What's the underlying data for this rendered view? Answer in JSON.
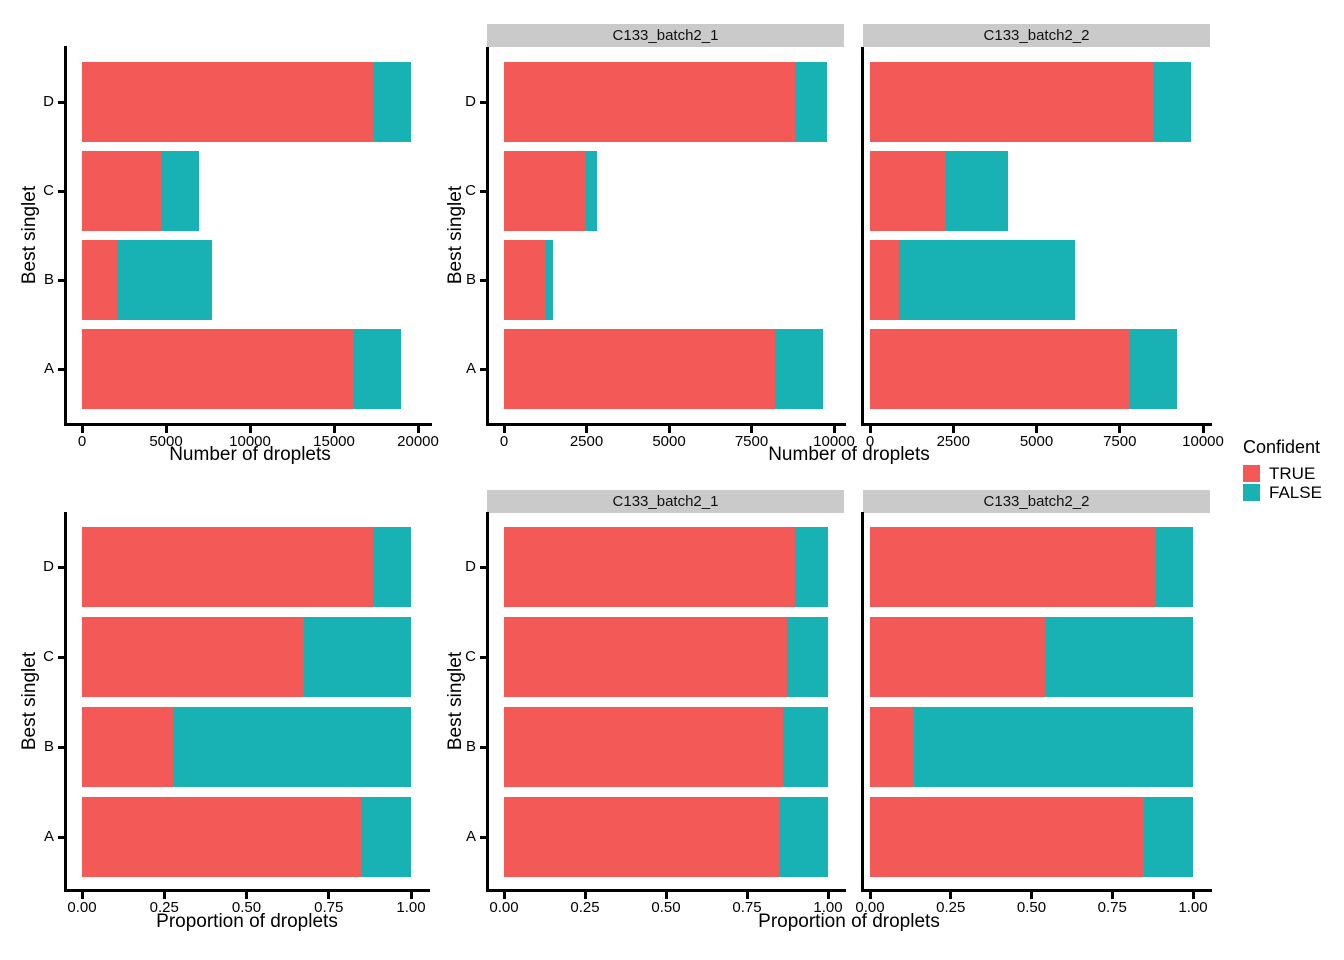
{
  "figure": {
    "background": "#ffffff",
    "y_axis_title": "Best singlet",
    "colors": {
      "TRUE": "#F35A57",
      "FALSE": "#18B1B4",
      "strip_bg": "#CACACA",
      "axis": "#000000",
      "text": "#000000"
    },
    "legend": {
      "title": "Confident",
      "items": [
        {
          "label": "TRUE",
          "color": "#F35A57"
        },
        {
          "label": "FALSE",
          "color": "#18B1B4"
        }
      ]
    }
  },
  "chart_data": [
    {
      "id": "counts-combined",
      "type": "bar",
      "orientation": "horizontal",
      "stacked": true,
      "facet": null,
      "xlabel": "Number of droplets",
      "ylabel": "Best singlet",
      "xlim": [
        0,
        20000
      ],
      "xticks": [
        0,
        5000,
        10000,
        15000,
        20000
      ],
      "xtick_labels": [
        "0",
        "5000",
        "10000",
        "15000",
        "20000"
      ],
      "categories": [
        "D",
        "C",
        "B",
        "A"
      ],
      "series": [
        {
          "name": "TRUE",
          "values": [
            17380,
            4720,
            2100,
            16110
          ]
        },
        {
          "name": "FALSE",
          "values": [
            2180,
            2260,
            5640,
            2860
          ]
        }
      ]
    },
    {
      "id": "counts-C133_batch2_1",
      "type": "bar",
      "orientation": "horizontal",
      "stacked": true,
      "facet": "C133_batch2_1",
      "xlabel": "Number of droplets",
      "ylabel": "Best singlet",
      "xlim": [
        0,
        10000
      ],
      "xticks": [
        0,
        2500,
        5000,
        7500,
        10000
      ],
      "xtick_labels": [
        "0",
        "2500",
        "5000",
        "7500",
        "10000"
      ],
      "categories": [
        "D",
        "C",
        "B",
        "A"
      ],
      "series": [
        {
          "name": "TRUE",
          "values": [
            8810,
            2450,
            1240,
            8220
          ]
        },
        {
          "name": "FALSE",
          "values": [
            970,
            360,
            240,
            1460
          ]
        }
      ]
    },
    {
      "id": "counts-C133_batch2_2",
      "type": "bar",
      "orientation": "horizontal",
      "stacked": true,
      "facet": "C133_batch2_2",
      "xlabel": "Number of droplets",
      "ylabel": null,
      "xlim": [
        0,
        10000
      ],
      "xticks": [
        0,
        2500,
        5000,
        7500,
        10000
      ],
      "xtick_labels": [
        "0",
        "2500",
        "5000",
        "7500",
        "10000"
      ],
      "categories": [
        "D",
        "C",
        "B",
        "A"
      ],
      "series": [
        {
          "name": "TRUE",
          "values": [
            8490,
            2250,
            860,
            7770
          ]
        },
        {
          "name": "FALSE",
          "values": [
            1150,
            1890,
            5300,
            1440
          ]
        }
      ]
    },
    {
      "id": "proportions-combined",
      "type": "bar",
      "orientation": "horizontal",
      "stacked": true,
      "facet": null,
      "xlabel": "Proportion of droplets",
      "ylabel": "Best singlet",
      "xlim": [
        0,
        1
      ],
      "xticks": [
        0,
        0.25,
        0.5,
        0.75,
        1
      ],
      "xtick_labels": [
        "0.00",
        "0.25",
        "0.50",
        "0.75",
        "1.00"
      ],
      "categories": [
        "D",
        "C",
        "B",
        "A"
      ],
      "series": [
        {
          "name": "TRUE",
          "values": [
            0.887,
            0.675,
            0.277,
            0.848
          ]
        },
        {
          "name": "FALSE",
          "values": [
            0.113,
            0.325,
            0.723,
            0.152
          ]
        }
      ]
    },
    {
      "id": "proportions-C133_batch2_1",
      "type": "bar",
      "orientation": "horizontal",
      "stacked": true,
      "facet": "C133_batch2_1",
      "xlabel": "Proportion of droplets",
      "ylabel": "Best singlet",
      "xlim": [
        0,
        1
      ],
      "xticks": [
        0,
        0.25,
        0.5,
        0.75,
        1
      ],
      "xtick_labels": [
        "0.00",
        "0.25",
        "0.50",
        "0.75",
        "1.00"
      ],
      "categories": [
        "D",
        "C",
        "B",
        "A"
      ],
      "series": [
        {
          "name": "TRUE",
          "values": [
            0.899,
            0.874,
            0.86,
            0.851
          ]
        },
        {
          "name": "FALSE",
          "values": [
            0.101,
            0.126,
            0.14,
            0.149
          ]
        }
      ]
    },
    {
      "id": "proportions-C133_batch2_2",
      "type": "bar",
      "orientation": "horizontal",
      "stacked": true,
      "facet": "C133_batch2_2",
      "xlabel": "Proportion of droplets",
      "ylabel": null,
      "xlim": [
        0,
        1
      ],
      "xticks": [
        0,
        0.25,
        0.5,
        0.75,
        1
      ],
      "xtick_labels": [
        "0.00",
        "0.25",
        "0.50",
        "0.75",
        "1.00"
      ],
      "categories": [
        "D",
        "C",
        "B",
        "A"
      ],
      "series": [
        {
          "name": "TRUE",
          "values": [
            0.885,
            0.542,
            0.137,
            0.847
          ]
        },
        {
          "name": "FALSE",
          "values": [
            0.115,
            0.458,
            0.863,
            0.153
          ]
        }
      ]
    }
  ]
}
